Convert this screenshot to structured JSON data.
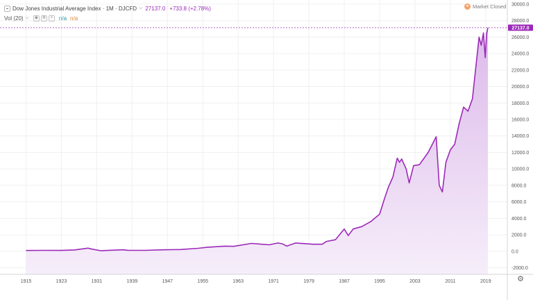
{
  "legend": {
    "title": "Dow Jones Industrial Average Index · 1M · DJCFD",
    "price": "27137.0",
    "change": "+733.8 (+2.78%)"
  },
  "volume_legend": {
    "label": "Vol (20)",
    "value1": "n/a",
    "value2": "n/a"
  },
  "market_status": "Market Closed",
  "price_label": "27137.0",
  "colors": {
    "line": "#9b29b8",
    "fill_top": "#dcb9ea",
    "fill_bottom": "#f6eefa",
    "accent": "#9b29b8"
  },
  "icons": [
    "collapse-icon",
    "chevron-down-icon",
    "eye-icon",
    "settings-icon",
    "close-icon",
    "market-status-icon",
    "gear-icon"
  ],
  "chart_data": {
    "type": "area",
    "ylim": [
      -2800,
      30500
    ],
    "xlim": [
      1915,
      2020
    ],
    "y_ticks": [
      "30000.0",
      "28000.0",
      "26000.0",
      "24000.0",
      "22000.0",
      "20000.0",
      "18000.0",
      "16000.0",
      "14000.0",
      "12000.0",
      "10000.0",
      "8000.0",
      "6000.0",
      "4000.0",
      "2000.0",
      "0.0",
      "-2000.0"
    ],
    "y_tick_values": [
      30000,
      28000,
      26000,
      24000,
      22000,
      20000,
      18000,
      16000,
      14000,
      12000,
      10000,
      8000,
      6000,
      4000,
      2000,
      0,
      -2000
    ],
    "x_ticks": [
      "1915",
      "1923",
      "1931",
      "1939",
      "1947",
      "1955",
      "1963",
      "1971",
      "1979",
      "1987",
      "1995",
      "2003",
      "2011",
      "2019"
    ],
    "x_tick_values": [
      1915,
      1923,
      1931,
      1939,
      1947,
      1955,
      1963,
      1971,
      1979,
      1987,
      1995,
      2003,
      2011,
      2019
    ],
    "series": [
      {
        "x": [
          1915,
          1919,
          1923,
          1926,
          1929,
          1930,
          1932,
          1933,
          1937,
          1938,
          1942,
          1946,
          1950,
          1954,
          1956,
          1960,
          1962,
          1966,
          1970,
          1972,
          1973,
          1974,
          1976,
          1980,
          1982,
          1983,
          1985,
          1987,
          1987.9,
          1989,
          1991,
          1993,
          1995,
          1996,
          1997,
          1998,
          1999,
          1999.5,
          2000,
          2001,
          2001.7,
          2002.7,
          2004,
          2006,
          2007.8,
          2008.5,
          2009.2,
          2010,
          2011,
          2012,
          2013,
          2014,
          2015,
          2016,
          2017,
          2017.5,
          2018,
          2018.5,
          2018.9,
          2019.2,
          2019.5
        ],
        "values": [
          90,
          110,
          100,
          160,
          380,
          250,
          60,
          90,
          180,
          120,
          110,
          180,
          210,
          360,
          480,
          620,
          600,
          950,
          780,
          1000,
          900,
          620,
          1000,
          850,
          850,
          1200,
          1400,
          2700,
          1900,
          2700,
          3000,
          3600,
          4500,
          6200,
          7800,
          9000,
          11300,
          10800,
          11200,
          10000,
          8300,
          10400,
          10500,
          12000,
          13900,
          8000,
          7200,
          10800,
          12300,
          13000,
          15500,
          17500,
          17000,
          18500,
          23500,
          26000,
          25000,
          26500,
          23500,
          26400,
          27137
        ]
      }
    ]
  }
}
